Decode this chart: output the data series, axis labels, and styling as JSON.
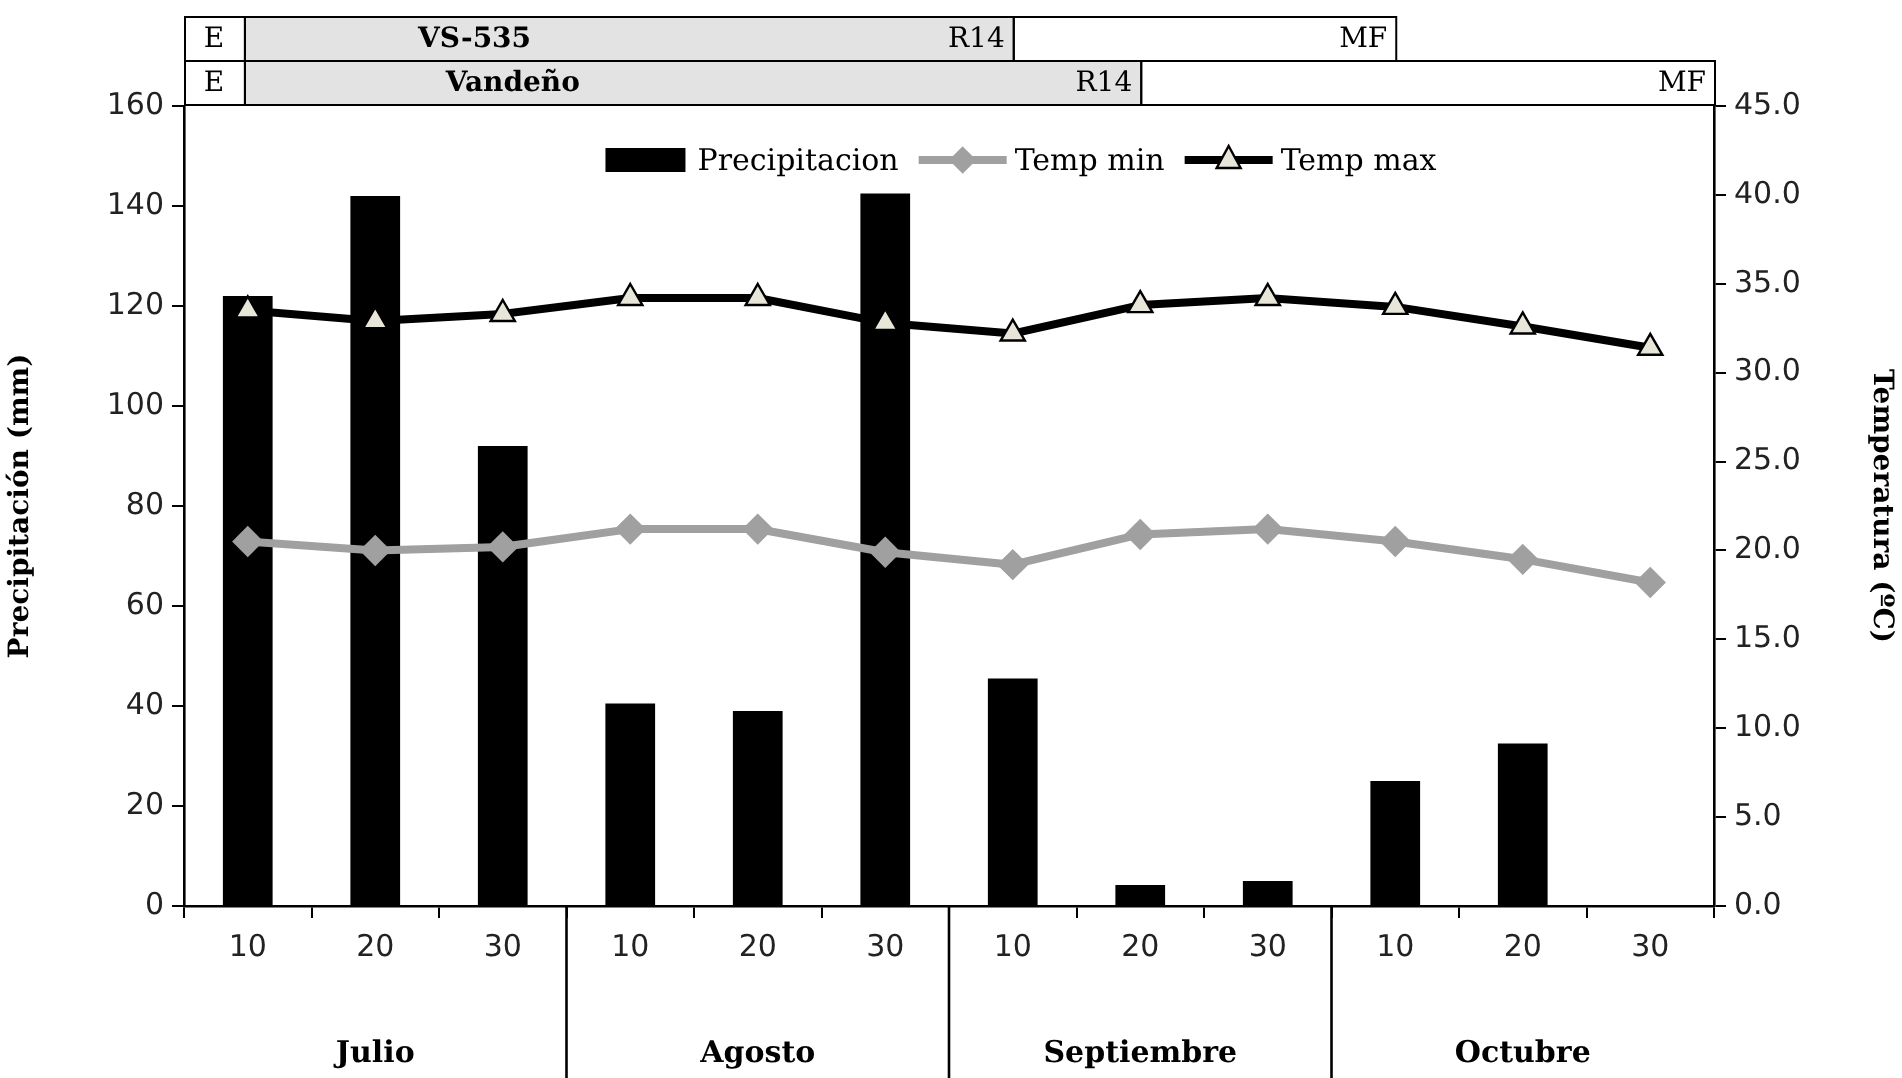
{
  "chart_data": {
    "type": "bar",
    "categories": [
      "10",
      "20",
      "30",
      "10",
      "20",
      "30",
      "10",
      "20",
      "30",
      "10",
      "20",
      "30"
    ],
    "series": [
      {
        "name": "Precipitacion",
        "color": "#000000",
        "values": [
          122,
          142,
          92,
          40.5,
          39,
          142.5,
          45.5,
          4.2,
          5,
          25,
          32.5,
          0
        ]
      },
      {
        "name": "Temp min",
        "type": "line",
        "axis": "y2",
        "color": "#a0a0a0",
        "marker": "diamond",
        "values": [
          20.5,
          20.0,
          20.2,
          21.2,
          21.2,
          19.9,
          19.2,
          20.9,
          21.2,
          20.5,
          19.5,
          18.2
        ]
      },
      {
        "name": "Temp max",
        "type": "line",
        "axis": "y2",
        "color": "#000000",
        "marker": "triangle",
        "values": [
          33.5,
          32.9,
          33.3,
          34.2,
          34.2,
          32.8,
          32.2,
          33.8,
          34.2,
          33.7,
          32.6,
          31.4
        ]
      }
    ],
    "ylabel": "Precipitación (mm)",
    "y2label": "Temperatura (ºC)",
    "ylim": [
      0,
      160
    ],
    "yticks": [
      0,
      20,
      40,
      60,
      80,
      100,
      120,
      140,
      160
    ],
    "y2lim": [
      0,
      45
    ],
    "y2ticks": [
      {
        "value": 0,
        "label": "0.0"
      },
      {
        "value": 5,
        "label": "5.0"
      },
      {
        "value": 10,
        "label": "10.0"
      },
      {
        "value": 15,
        "label": "15.0"
      },
      {
        "value": 20,
        "label": "20.0"
      },
      {
        "value": 25,
        "label": "25.0"
      },
      {
        "value": 30,
        "label": "30.0"
      },
      {
        "value": 35,
        "label": "35.0"
      },
      {
        "value": 40,
        "label": "40.0"
      },
      {
        "value": 45,
        "label": "45.0"
      }
    ],
    "legend": "top",
    "annotations": [
      "E",
      "VS-535",
      "R14",
      "MF",
      "E",
      "Vandeño",
      "R14",
      "MF",
      "Julio",
      "Agosto",
      "Septiembre",
      "Octubre"
    ]
  }
}
